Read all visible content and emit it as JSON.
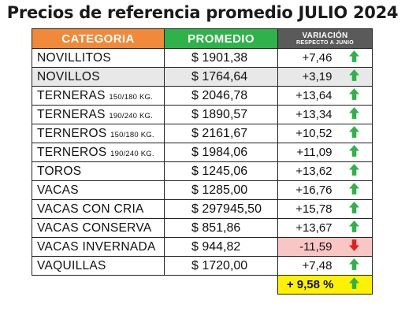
{
  "title": "Precios de referencia promedio JULIO 2024",
  "headers": {
    "categoria": "CATEGORIA",
    "promedio": "PROMEDIO",
    "variacion": "VARIACIÓN",
    "variacion_sub": "RESPECTO A JUNIO"
  },
  "rows": [
    {
      "cat": "NOVILLITOS",
      "cat_sub": "",
      "promedio": "$ 1901,38",
      "var": "+7,46",
      "dir": "up",
      "shaded": false
    },
    {
      "cat": "NOVILLOS",
      "cat_sub": "",
      "promedio": "$ 1764,64",
      "var": "+3,19",
      "dir": "up",
      "shaded": true
    },
    {
      "cat": "TERNERAS",
      "cat_sub": "150/180 KG.",
      "promedio": "$ 2046,78",
      "var": "+13,64",
      "dir": "up",
      "shaded": false
    },
    {
      "cat": "TERNERAS",
      "cat_sub": "190/240 KG.",
      "promedio": "$ 1890,57",
      "var": "+13,34",
      "dir": "up",
      "shaded": false
    },
    {
      "cat": "TERNEROS",
      "cat_sub": "150/180 KG.",
      "promedio": "$ 2161,67",
      "var": "+10,52",
      "dir": "up",
      "shaded": false
    },
    {
      "cat": "TERNEROS",
      "cat_sub": "190/240 KG.",
      "promedio": "$ 1984,06",
      "var": "+11,09",
      "dir": "up",
      "shaded": false
    },
    {
      "cat": "TOROS",
      "cat_sub": "",
      "promedio": "$ 1245,06",
      "var": "+13,62",
      "dir": "up",
      "shaded": false
    },
    {
      "cat": "VACAS",
      "cat_sub": "",
      "promedio": "$ 1285,00",
      "var": "+16,76",
      "dir": "up",
      "shaded": false
    },
    {
      "cat": "VACAS CON CRIA",
      "cat_sub": "",
      "promedio": "$ 297945,50",
      "var": "+15,78",
      "dir": "up",
      "shaded": false
    },
    {
      "cat": "VACAS CONSERVA",
      "cat_sub": "",
      "promedio": "$ 851,86",
      "var": "+13,67",
      "dir": "up",
      "shaded": false
    },
    {
      "cat": "VACAS INVERNADA",
      "cat_sub": "",
      "promedio": "$ 944,82",
      "var": "-11,59",
      "dir": "down",
      "shaded": false
    },
    {
      "cat": "VAQUILLAS",
      "cat_sub": "",
      "promedio": "$ 1720,00",
      "var": "+7,48",
      "dir": "up",
      "shaded": false
    }
  ],
  "total": {
    "value": "+ 9,58 %",
    "dir": "up"
  },
  "colors": {
    "header_categoria": "#f08a3a",
    "header_promedio": "#2fb24a",
    "header_variacion": "#5a5a5a",
    "arrow_up": "#2fb24a",
    "arrow_down": "#e02020",
    "negative_bg": "#f9c6c6",
    "total_bg": "#fff200"
  },
  "icons": {
    "up": "arrow-up-icon",
    "down": "arrow-down-icon"
  }
}
